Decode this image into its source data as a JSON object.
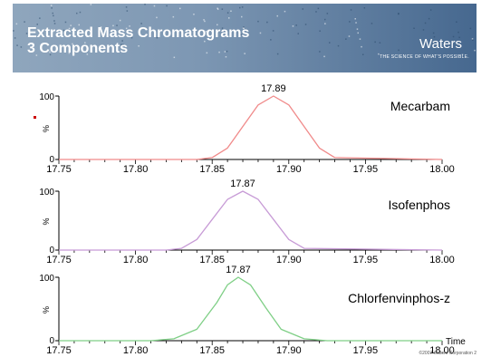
{
  "slide": {
    "title_line1": "Extracted Mass Chromatograms",
    "title_line2": "3 Components",
    "brand": "Waters",
    "tagline": "THE SCIENCE OF WHAT'S POSSIBLE.",
    "footer": "©2007 Waters Corporation",
    "page_number": "2"
  },
  "colors": {
    "banner": "#7f98b2",
    "axis": "#000000",
    "series_mecarbam": "#f08a8a",
    "series_isofenphos": "#c79bd6",
    "series_chlorfenvinphos": "#7fcf86",
    "marker": "#cc0000"
  },
  "chart_data": [
    {
      "type": "line",
      "series": [
        {
          "name": "Mecarbam",
          "peak_x": 17.89,
          "peak_y": 100,
          "x": [
            17.75,
            17.84,
            17.85,
            17.86,
            17.87,
            17.88,
            17.89,
            17.9,
            17.91,
            17.92,
            17.93,
            18.0
          ],
          "y": [
            0,
            0,
            3,
            18,
            52,
            86,
            100,
            86,
            52,
            18,
            3,
            0
          ]
        }
      ],
      "peak_label": "17.89",
      "x_ticks": [
        "17.75",
        "17.80",
        "17.85",
        "17.90",
        "17.95",
        "18.00"
      ],
      "y_ticks": [
        "0",
        "100"
      ],
      "ylabel": "%",
      "xlim": [
        17.75,
        18.0
      ],
      "ylim": [
        0,
        100
      ]
    },
    {
      "type": "line",
      "series": [
        {
          "name": "Isofenphos",
          "peak_x": 17.87,
          "peak_y": 100,
          "x": [
            17.75,
            17.82,
            17.83,
            17.84,
            17.85,
            17.86,
            17.87,
            17.88,
            17.89,
            17.9,
            17.91,
            18.0
          ],
          "y": [
            0,
            0,
            3,
            18,
            52,
            86,
            100,
            86,
            52,
            18,
            3,
            0
          ]
        }
      ],
      "peak_label": "17.87",
      "x_ticks": [
        "17.75",
        "17.80",
        "17.85",
        "17.90",
        "17.95",
        "18.00"
      ],
      "y_ticks": [
        "0",
        "100"
      ],
      "ylabel": "%",
      "xlim": [
        17.75,
        18.0
      ],
      "ylim": [
        0,
        100
      ]
    },
    {
      "type": "line",
      "series": [
        {
          "name": "Chlorfenvinphos-z",
          "peak_x": 17.867,
          "peak_y": 100,
          "x": [
            17.75,
            17.81,
            17.825,
            17.84,
            17.853,
            17.86,
            17.867,
            17.875,
            17.885,
            17.895,
            17.91,
            17.925,
            18.0
          ],
          "y": [
            0,
            0,
            3,
            18,
            60,
            88,
            100,
            88,
            52,
            18,
            3,
            0,
            0
          ]
        }
      ],
      "peak_label": "17.87",
      "x_ticks": [
        "17.75",
        "17.80",
        "17.85",
        "17.90",
        "17.95",
        "18.00"
      ],
      "y_ticks": [
        "0",
        "100"
      ],
      "ylabel": "%",
      "xlabel": "Time",
      "xlim": [
        17.75,
        18.0
      ],
      "ylim": [
        0,
        100
      ]
    }
  ]
}
